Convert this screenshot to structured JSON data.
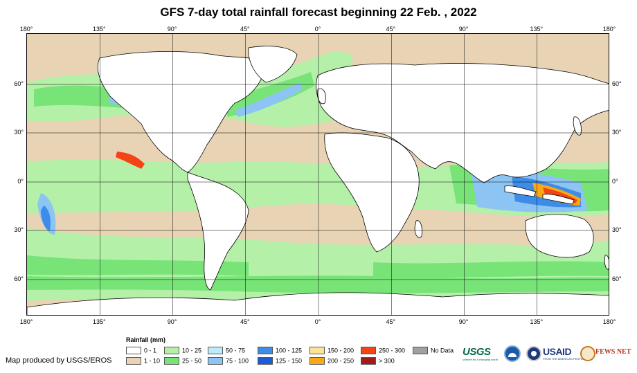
{
  "title": "GFS 7-day total rainfall forecast beginning 22 Feb. , 2022",
  "axes": {
    "longitude_labels": [
      "180°",
      "135°",
      "90°",
      "45°",
      "0°",
      "45°",
      "90°",
      "135°",
      "180°"
    ],
    "latitude_labels": [
      "60°",
      "30°",
      "0°",
      "30°",
      "60°"
    ]
  },
  "legend": {
    "title": "Rainfall (mm)",
    "items": [
      {
        "label": "0 - 1",
        "color": "#ffffff"
      },
      {
        "label": "1 - 10",
        "color": "#e8d4b4"
      },
      {
        "label": "10 - 25",
        "color": "#b4f0a8"
      },
      {
        "label": "25 - 50",
        "color": "#78e478"
      },
      {
        "label": "50 - 75",
        "color": "#bcecfc"
      },
      {
        "label": "75 - 100",
        "color": "#8cc4f4"
      },
      {
        "label": "100 - 125",
        "color": "#3c8ce8"
      },
      {
        "label": "125 - 150",
        "color": "#1c5ad8"
      },
      {
        "label": "150 - 200",
        "color": "#fce494"
      },
      {
        "label": "200 - 250",
        "color": "#fca814"
      },
      {
        "label": "250 - 300",
        "color": "#f44414"
      },
      {
        "label": "> 300",
        "color": "#a01c1c"
      },
      {
        "label": "No Data",
        "color": "#a0a0a0"
      }
    ]
  },
  "credit": "Map produced by USGS/EROS",
  "logos": {
    "usgs": "USGS",
    "usgs_tagline": "science for a changing world",
    "usaid": "USAID",
    "usaid_tagline": "FROM THE AMERICAN PEOPLE",
    "fewsnet": "FEWS NET"
  },
  "colors": {
    "land_outline": "#000000",
    "grid": "#000000"
  }
}
